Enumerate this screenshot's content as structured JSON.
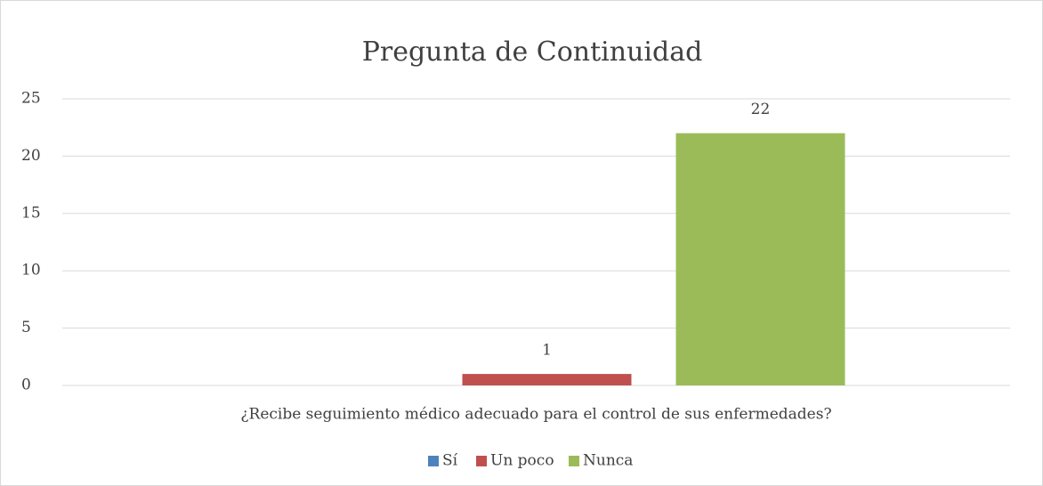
{
  "chart_data": {
    "type": "bar",
    "title": "Pregunta de Continuidad",
    "categories": [
      "¿Recibe seguimiento médico adecuado para el control de sus enfermedades?"
    ],
    "series": [
      {
        "name": "Sí",
        "color": "#4f81bd",
        "values": [
          null
        ]
      },
      {
        "name": "Un poco",
        "color": "#c0504d",
        "values": [
          1
        ]
      },
      {
        "name": "Nunca",
        "color": "#9bbb59",
        "values": [
          22
        ]
      }
    ],
    "ylim": [
      0,
      25
    ],
    "yticks": [
      0,
      5,
      10,
      15,
      20,
      25
    ],
    "grid": true,
    "legend": "bottom"
  }
}
